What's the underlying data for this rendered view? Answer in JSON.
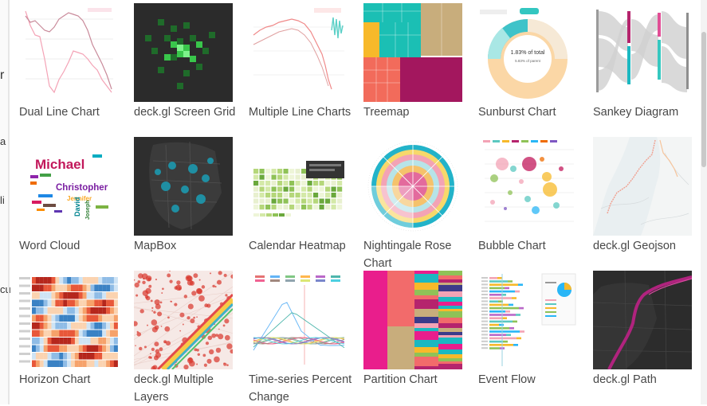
{
  "left_fragments": [
    "r",
    "a",
    "li",
    "cu"
  ],
  "gallery": [
    {
      "title": "Dual Line Chart",
      "thumb": "dual-line-chart-thumbnail"
    },
    {
      "title": "deck.gl Screen Grid",
      "thumb": "deckgl-screen-grid-thumbnail"
    },
    {
      "title": "Multiple Line Charts",
      "thumb": "multiple-line-charts-thumbnail"
    },
    {
      "title": "Treemap",
      "thumb": "treemap-thumbnail"
    },
    {
      "title": "Sunburst Chart",
      "thumb": "sunburst-chart-thumbnail",
      "thumb_text": [
        "1.83% of total",
        "5.83% of parent"
      ]
    },
    {
      "title": "Sankey Diagram",
      "thumb": "sankey-diagram-thumbnail"
    },
    {
      "title": "Word Cloud",
      "thumb": "word-cloud-thumbnail",
      "thumb_text": [
        "Michael",
        "Christopher",
        "Jennifer",
        "David",
        "Joseph"
      ]
    },
    {
      "title": "MapBox",
      "thumb": "mapbox-thumbnail"
    },
    {
      "title": "Calendar Heatmap",
      "thumb": "calendar-heatmap-thumbnail"
    },
    {
      "title": "Nightingale Rose Chart",
      "thumb": "nightingale-rose-chart-thumbnail"
    },
    {
      "title": "Bubble Chart",
      "thumb": "bubble-chart-thumbnail"
    },
    {
      "title": "deck.gl Geojson",
      "thumb": "deckgl-geojson-thumbnail"
    },
    {
      "title": "Horizon Chart",
      "thumb": "horizon-chart-thumbnail"
    },
    {
      "title": "deck.gl Multiple Layers",
      "thumb": "deckgl-multiple-layers-thumbnail"
    },
    {
      "title": "Time-series Percent Change",
      "thumb": "time-series-percent-change-thumbnail"
    },
    {
      "title": "Partition Chart",
      "thumb": "partition-chart-thumbnail"
    },
    {
      "title": "Event Flow",
      "thumb": "event-flow-thumbnail"
    },
    {
      "title": "deck.gl Path",
      "thumb": "deckgl-path-thumbnail"
    }
  ]
}
